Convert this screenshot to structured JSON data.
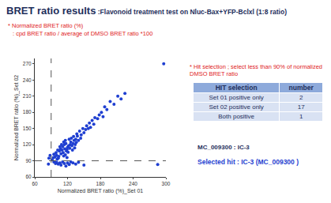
{
  "title": "BRET ratio results",
  "subtitle": ":Flavonoid treatment test on Nluc-Bax+YFP-Bclxl (1:8 ratio)",
  "notes": [
    "* Normalized BRET ratio (%)",
    ": cpd BRET ratio / average of DMSO BRET ratio *100"
  ],
  "hit_note": "* Hit selection ; select less than 90% of normalized DMSO BRET ratio",
  "table": {
    "header": [
      "HIT selection",
      "number"
    ],
    "rows": [
      [
        "Set 01 positive only",
        2
      ],
      [
        "Set 02 positive only",
        17
      ],
      [
        "Both positive",
        1
      ]
    ]
  },
  "compound_line": "MC_009300 : IC-3",
  "selected_hit": "Selected hit : IC-3 (MC_009300 )",
  "chart_data": {
    "type": "scatter",
    "x_label": "Normalized BRET ratio (%)_Set 01",
    "y_label": "Normalized BRET ratio (%)_Set 02",
    "color": "#1f3fd1",
    "marker": "circle",
    "x": [
      100,
      104,
      108,
      110,
      112,
      115,
      118,
      120,
      122,
      125,
      105,
      107,
      111,
      114,
      117,
      119,
      121,
      124,
      126,
      128,
      130,
      132,
      134,
      99,
      102,
      106,
      109,
      113,
      116,
      123,
      127,
      131,
      135,
      138,
      140,
      136,
      129,
      133,
      103,
      97,
      95,
      101,
      113,
      116,
      119,
      137,
      142,
      145,
      148,
      150,
      144,
      153,
      155,
      158,
      160,
      162,
      165,
      168,
      170,
      175,
      178,
      182,
      185,
      188,
      192,
      198,
      205,
      212,
      218,
      225,
      296,
      95,
      98,
      100,
      103,
      106,
      108,
      111,
      114,
      117,
      120,
      123,
      126,
      130,
      135,
      140,
      150,
      285,
      86,
      88,
      85,
      92,
      94
    ],
    "y": [
      100,
      98,
      103,
      110,
      105,
      112,
      108,
      115,
      118,
      120,
      108,
      112,
      116,
      120,
      122,
      111,
      106,
      113,
      125,
      118,
      122,
      128,
      120,
      105,
      110,
      116,
      120,
      125,
      128,
      130,
      132,
      135,
      130,
      136,
      128,
      124,
      110,
      114,
      95,
      97,
      102,
      93,
      99,
      101,
      96,
      140,
      145,
      138,
      150,
      142,
      132,
      148,
      155,
      150,
      160,
      152,
      165,
      158,
      170,
      168,
      175,
      180,
      172,
      190,
      185,
      200,
      195,
      210,
      205,
      215,
      270,
      88,
      85,
      87,
      84,
      86,
      82,
      88,
      85,
      80,
      86,
      83,
      88,
      86,
      84,
      87,
      82,
      83,
      95,
      100,
      84,
      92,
      96
    ],
    "xlim": [
      60,
      300
    ],
    "ylim": [
      60,
      280
    ],
    "xticks": [
      60,
      120,
      180,
      240,
      300
    ],
    "yticks": [
      60,
      90,
      120,
      150,
      180,
      210,
      240,
      270
    ],
    "reference_lines": {
      "x": 90,
      "y": 90
    },
    "line_style": "dash"
  }
}
